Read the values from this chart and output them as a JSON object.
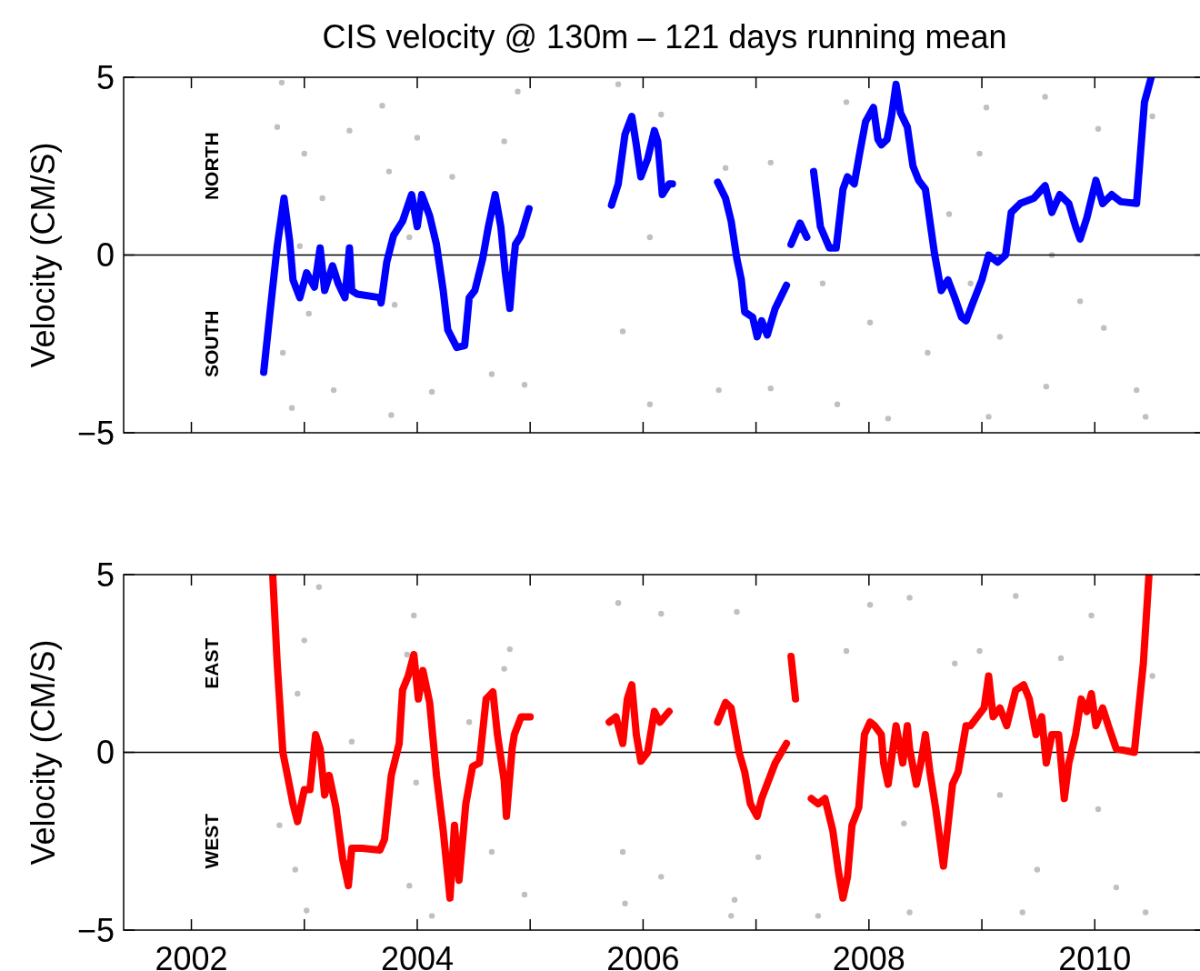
{
  "chart_data": [
    {
      "type": "line",
      "title": "CIS velocity @ 130m – 121 days running mean",
      "ylabel": "Velocity (CM/S)",
      "annotations": [
        "NORTH",
        "SOUTH"
      ],
      "xlim": [
        2001.4,
        2010.98
      ],
      "xticks": [
        2002,
        2003,
        2004,
        2005,
        2006,
        2007,
        2008,
        2009,
        2010
      ],
      "ylim": [
        -5,
        5
      ],
      "yticks": [
        -5,
        0,
        5
      ],
      "tick_labels": "y",
      "grid": false,
      "ref_lines": [
        {
          "axis": "y",
          "value": 0,
          "color": "#000000"
        }
      ],
      "series": [
        {
          "type": "scatter",
          "marker": "circle",
          "color": "#c0c0c0",
          "x": [
            2002.8,
            2003.69,
            2002.76,
            2003.4,
            2004.0,
            2003.0,
            2004.31,
            2003.75,
            2003.16,
            2003.93,
            2002.96,
            2003.04,
            2003.8,
            2002.81,
            2003.26,
            2004.13,
            2002.89,
            2003.77,
            2004.66,
            2004.77,
            2004.89,
            2004.95,
            2005.78,
            2006.16,
            2005.82,
            2006.06,
            2006.73,
            2007.13,
            2007.8,
            2006.67,
            2007.13,
            2007.72,
            2008.01,
            2007.59,
            2006.06,
            2009.04,
            2009.56,
            2008.98,
            2010.03,
            2010.51,
            2008.71,
            2008.9,
            2009.87,
            2009.16,
            2010.08,
            2008.52,
            2009.57,
            2010.45,
            2009.06,
            2008.17,
            2009.62,
            2010.37
          ],
          "values": [
            4.85,
            4.2,
            3.6,
            3.5,
            3.3,
            2.85,
            2.2,
            2.35,
            1.6,
            0.5,
            0.25,
            -1.65,
            -1.4,
            -2.75,
            -3.8,
            -3.85,
            -4.3,
            -4.5,
            -3.35,
            3.2,
            4.6,
            -3.65,
            4.8,
            3.95,
            -2.15,
            -4.2,
            2.45,
            2.6,
            4.3,
            -3.8,
            -3.75,
            -4.2,
            -1.9,
            -0.8,
            0.5,
            4.15,
            4.45,
            2.85,
            3.55,
            3.9,
            1.15,
            -0.8,
            -1.3,
            -2.3,
            -2.05,
            -2.75,
            -3.7,
            -4.55,
            -4.55,
            -4.6,
            0,
            -3.8
          ]
        },
        {
          "marker": "none",
          "color": "#0000ff",
          "x": [
            2002.64,
            2002.7,
            2002.76,
            2002.82,
            2002.87,
            2002.9,
            2002.96,
            2003.02,
            2003.09,
            2003.14,
            2003.18,
            2003.25,
            2003.3,
            2003.36,
            2003.4,
            2003.42,
            2003.47,
            2003.67,
            2003.68,
            2003.73,
            2003.79,
            2003.87,
            2003.95,
            2004.0,
            2004.04,
            2004.11,
            2004.17,
            2004.23,
            2004.27,
            2004.35,
            2004.42,
            2004.46,
            2004.51,
            2004.58,
            2004.63,
            2004.69,
            2004.74,
            2004.78,
            2004.82,
            2004.85,
            2004.87,
            2004.92,
            2004.99,
            2005.3,
            2005.72,
            2005.78,
            2005.84,
            2005.9,
            2005.94,
            2005.98,
            2006.04,
            2006.1,
            2006.13,
            2006.17,
            2006.23,
            2006.26,
            2006.4,
            2006.66,
            2006.73,
            2006.78,
            2006.83,
            2006.87,
            2006.9,
            2006.97,
            2007.01,
            2007.05,
            2007.1,
            2007.17,
            2007.27,
            2007.29,
            2007.31,
            2007.39,
            2007.45,
            2007.48,
            2007.51,
            2007.57,
            2007.65,
            2007.71,
            2007.77,
            2007.81,
            2007.87,
            2007.92,
            2007.97,
            2008.04,
            2008.08,
            2008.11,
            2008.16,
            2008.2,
            2008.24,
            2008.28,
            2008.34,
            2008.39,
            2008.44,
            2008.5,
            2008.58,
            2008.64,
            2008.7,
            2008.76,
            2008.82,
            2008.86,
            2008.92,
            2009.0,
            2009.06,
            2009.14,
            2009.21,
            2009.26,
            2009.34,
            2009.46,
            2009.56,
            2009.62,
            2009.69,
            2009.77,
            2009.83,
            2009.87,
            2009.93,
            2010.01,
            2010.07,
            2010.15,
            2010.23,
            2010.37,
            2010.44,
            2010.5
          ],
          "values": [
            -3.3,
            -1.5,
            0.25,
            1.6,
            0.4,
            -0.7,
            -1.2,
            -0.5,
            -0.9,
            0.2,
            -1.0,
            -0.3,
            -0.8,
            -1.2,
            0.2,
            -1.0,
            -1.1,
            -1.2,
            -1.35,
            -0.2,
            0.55,
            0.95,
            1.7,
            0.8,
            1.7,
            1.1,
            0.3,
            -1.0,
            -2.1,
            -2.6,
            -2.55,
            -1.2,
            -1.0,
            -0.1,
            0.8,
            1.7,
            0.8,
            -0.5,
            -1.5,
            -0.3,
            0.3,
            0.55,
            1.3,
            null,
            1.4,
            2.0,
            3.4,
            3.9,
            3.1,
            2.2,
            2.7,
            3.5,
            3.2,
            1.7,
            2.0,
            2.0,
            null,
            2.05,
            1.6,
            0.95,
            -0.1,
            -0.7,
            -1.6,
            -1.75,
            -2.3,
            -1.85,
            -2.25,
            -1.5,
            -0.85,
            null,
            0.3,
            0.9,
            0.5,
            null,
            2.35,
            0.8,
            0.2,
            0.2,
            1.85,
            2.2,
            2.0,
            2.9,
            3.75,
            4.15,
            3.25,
            3.1,
            3.25,
            3.9,
            4.8,
            4.0,
            3.6,
            2.5,
            2.1,
            1.85,
            0.05,
            -1.0,
            -0.7,
            -1.2,
            -1.75,
            -1.85,
            -1.35,
            -0.7,
            0,
            -0.2,
            0,
            1.2,
            1.45,
            1.6,
            1.95,
            1.2,
            1.7,
            1.45,
            0.8,
            0.45,
            1.05,
            2.1,
            1.45,
            1.7,
            1.5,
            1.45,
            4.3,
            5.0
          ]
        }
      ]
    },
    {
      "type": "line",
      "ylabel": "Velocity (CM/S)",
      "annotations": [
        "EAST",
        "WEST"
      ],
      "xlim": [
        2001.4,
        2010.98
      ],
      "xticks": [
        {
          "value": 2002,
          "label": "2002"
        },
        {
          "value": 2003,
          "label": null
        },
        {
          "value": 2004,
          "label": "2004"
        },
        {
          "value": 2005,
          "label": null
        },
        {
          "value": 2006,
          "label": "2006"
        },
        {
          "value": 2007,
          "label": null
        },
        {
          "value": 2008,
          "label": "2008"
        },
        {
          "value": 2009,
          "label": null
        },
        {
          "value": 2010,
          "label": "2010"
        }
      ],
      "ylim": [
        -5,
        5
      ],
      "yticks": [
        -5,
        0,
        5
      ],
      "grid": false,
      "ref_lines": [
        {
          "axis": "y",
          "value": 0,
          "color": "#000000"
        }
      ],
      "series": [
        {
          "type": "scatter",
          "marker": "circle",
          "color": "#c0c0c0",
          "x": [
            2003.13,
            2003.97,
            2003.0,
            2003.91,
            2004.77,
            2002.94,
            2004.46,
            2003.42,
            2003.99,
            2002.78,
            2004.66,
            2002.92,
            2003.93,
            2003.02,
            2004.13,
            2004.95,
            2004.82,
            2005.78,
            2006.16,
            2006.83,
            2005.82,
            2006.16,
            2005.84,
            2006.81,
            2007.02,
            2007.55,
            2007.8,
            2008.01,
            2006.78,
            2008.36,
            2009.3,
            2009.97,
            2008.98,
            2009.7,
            2010.51,
            2008.31,
            2009.16,
            2010.03,
            2008.36,
            2009.49,
            2010.19,
            2010.45,
            2009.36,
            2008.76
          ],
          "values": [
            4.65,
            3.85,
            3.15,
            2.75,
            2.35,
            1.65,
            0.85,
            0.3,
            -0.85,
            -2.05,
            -2.8,
            -3.3,
            -3.75,
            -4.45,
            -4.6,
            -4.0,
            2.9,
            4.2,
            3.9,
            3.95,
            -2.8,
            -3.5,
            -4.25,
            -4.15,
            -2.95,
            -4.6,
            2.85,
            4.15,
            -4.6,
            4.35,
            4.4,
            3.85,
            2.85,
            2.65,
            2.15,
            -2.0,
            -1.2,
            -1.6,
            -4.5,
            -3.3,
            -3.8,
            -4.5,
            -4.5,
            2.5
          ]
        },
        {
          "marker": "none",
          "color": "#ff0000",
          "x": [
            2002.72,
            2002.76,
            2002.81,
            2002.86,
            2002.9,
            2002.94,
            2003.0,
            2003.05,
            2003.1,
            2003.14,
            2003.18,
            2003.22,
            2003.28,
            2003.34,
            2003.39,
            2003.42,
            2003.51,
            2003.67,
            2003.71,
            2003.77,
            2003.84,
            2003.87,
            2003.92,
            2003.97,
            2004.01,
            2004.05,
            2004.11,
            2004.17,
            2004.23,
            2004.29,
            2004.33,
            2004.37,
            2004.43,
            2004.49,
            2004.55,
            2004.61,
            2004.67,
            2004.71,
            2004.77,
            2004.79,
            2004.84,
            2004.86,
            2004.92,
            2005.0,
            2005.3,
            2005.7,
            2005.76,
            2005.82,
            2005.86,
            2005.9,
            2005.94,
            2005.98,
            2006.04,
            2006.1,
            2006.15,
            2006.23,
            2006.4,
            2006.66,
            2006.73,
            2006.78,
            2006.85,
            2006.9,
            2006.95,
            2007.01,
            2007.05,
            2007.11,
            2007.17,
            2007.27,
            2007.29,
            2007.31,
            2007.35,
            2007.38,
            2007.49,
            2007.55,
            2007.61,
            2007.68,
            2007.73,
            2007.77,
            2007.81,
            2007.85,
            2007.91,
            2007.96,
            2008.01,
            2008.05,
            2008.11,
            2008.13,
            2008.17,
            2008.24,
            2008.3,
            2008.34,
            2008.36,
            2008.42,
            2008.46,
            2008.5,
            2008.54,
            2008.59,
            2008.66,
            2008.7,
            2008.74,
            2008.79,
            2008.86,
            2008.9,
            2008.96,
            2009.02,
            2009.06,
            2009.1,
            2009.16,
            2009.22,
            2009.3,
            2009.37,
            2009.42,
            2009.48,
            2009.53,
            2009.57,
            2009.62,
            2009.68,
            2009.73,
            2009.77,
            2009.83,
            2009.88,
            2009.93,
            2009.97,
            2010.01,
            2010.07,
            2010.12,
            2010.19,
            2010.35,
            2010.43,
            2010.48
          ],
          "values": [
            5.0,
            2.5,
            0,
            -0.8,
            -1.45,
            -1.95,
            -1.05,
            -1.05,
            0.5,
            0.1,
            -1.2,
            -0.65,
            -1.55,
            -3.0,
            -3.75,
            -2.7,
            -2.7,
            -2.75,
            -2.45,
            -0.65,
            0.25,
            1.75,
            2.15,
            2.75,
            1.5,
            2.3,
            1.4,
            -0.65,
            -2.2,
            -4.1,
            -2.05,
            -3.6,
            -1.45,
            -0.4,
            -0.3,
            1.5,
            1.7,
            0.5,
            -0.8,
            -1.8,
            0.1,
            0.5,
            1.0,
            1.0,
            null,
            0.85,
            1.0,
            0.25,
            1.5,
            1.9,
            0.5,
            -0.25,
            0,
            1.15,
            0.85,
            1.15,
            null,
            0.85,
            1.4,
            1.25,
            0,
            -0.55,
            -1.45,
            -1.8,
            -1.3,
            -0.8,
            -0.3,
            0.25,
            null,
            2.7,
            1.5,
            null,
            -1.3,
            -1.45,
            -1.3,
            -2.2,
            -3.35,
            -4.1,
            -3.5,
            -2.05,
            -1.55,
            0.5,
            0.85,
            0.75,
            0.5,
            -0.3,
            -0.9,
            0.75,
            -0.3,
            0.75,
            0.1,
            -0.9,
            -0.3,
            0.5,
            -0.55,
            -1.55,
            -3.2,
            -2.05,
            -0.9,
            -0.55,
            0.75,
            0.75,
            1.0,
            1.25,
            2.15,
            1.0,
            1.25,
            0.75,
            1.75,
            1.9,
            1.5,
            0.5,
            1.0,
            -0.3,
            0.5,
            0.5,
            -1.3,
            -0.3,
            0.5,
            1.5,
            1.15,
            1.65,
            0.75,
            1.25,
            0.75,
            0.1,
            0,
            2.5,
            5.0
          ]
        }
      ]
    }
  ]
}
